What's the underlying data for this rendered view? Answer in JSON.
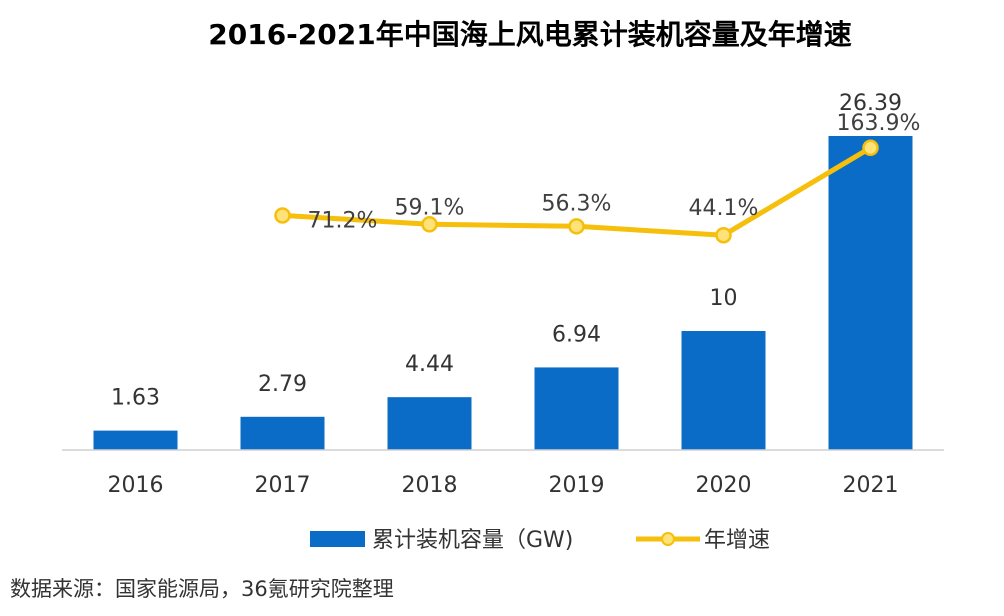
{
  "chart_data": {
    "type": "bar",
    "title": "2016-2021年中国海上风电累计装机容量及年增速",
    "categories": [
      "2016",
      "2017",
      "2018",
      "2019",
      "2020",
      "2021"
    ],
    "series": [
      {
        "name": "累计装机容量（GW)",
        "type": "bar",
        "axis": "primary",
        "values": [
          1.63,
          2.79,
          4.44,
          6.94,
          10,
          26.39
        ],
        "labels": [
          "1.63",
          "2.79",
          "4.44",
          "6.94",
          "10",
          "26.39"
        ],
        "color": "#0a6cc6"
      },
      {
        "name": "年增速",
        "type": "line",
        "axis": "secondary",
        "values": [
          null,
          71.2,
          59.1,
          56.3,
          44.1,
          163.9
        ],
        "labels": [
          null,
          "71.2%",
          "59.1%",
          "56.3%",
          "44.1%",
          "163.9%"
        ],
        "color": "#f5bf0b",
        "marker_fill": "#ffe37a"
      }
    ],
    "ylim": [
      0,
      28
    ],
    "y2lim": [
      -250,
      180
    ],
    "grid": false,
    "legend_position": "bottom",
    "source": "数据来源：国家能源局，36氪研究院整理"
  }
}
